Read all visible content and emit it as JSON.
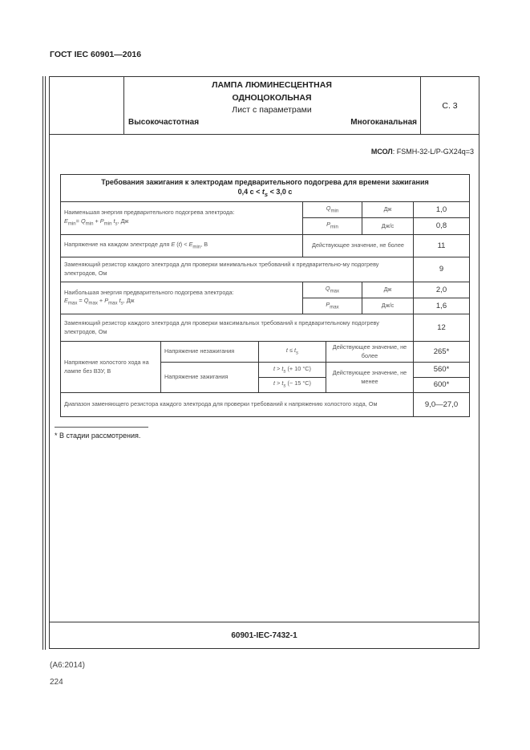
{
  "doc_header": "ГОСТ IEC 60901—2016",
  "sheet": {
    "title_line1": "ЛАМПА ЛЮМИНЕСЦЕНТНАЯ",
    "title_line2": "ОДНОЦОКОЛЬНАЯ",
    "subtitle": "Лист с параметрами",
    "left_label": "Высокочастотная",
    "right_label": "Многоканальная",
    "page": "С. 3",
    "model_label": "МСОЛ",
    "model_value": ": FSMH-32-L/P-GX24q=3",
    "footer_code": "60901-IEC-7432-1"
  },
  "table": {
    "title1": "Требования зажигания к электродам предварительного подогрева для времени зажигания",
    "title2": "0,4 с < ts < 3,0 с",
    "rows": {
      "emin_label1": "Наименьшая энергия предварительного подогрева электрода:",
      "emin_formula": "Emin= Qmin + Pmin ts, Дж",
      "qmin": "Qmin",
      "qmin_unit": "Дж",
      "qmin_value": "1,0",
      "pmin": "Pmin",
      "pmin_unit": "Дж/с",
      "pmin_value": "0,8",
      "voltage_label": "Напряжение на каждом электроде для E (t) < Emin, В",
      "voltage_desc": "Действующее значение, не более",
      "voltage_value": "11",
      "rmin_label": "Заменяющий резистор каждого электрода для проверки минимальных требований к предварительно-му подогреву электродов, Ом",
      "rmin_value": "9",
      "emax_label1": "Наибольшая энергия предварительного подогрева электрода:",
      "emax_formula": "Emax = Qmax + Pmax ts, Дж",
      "qmax": "Qmax",
      "qmax_unit": "Дж",
      "qmax_value": "2,0",
      "pmax": "Pmax",
      "pmax_unit": "Дж/с",
      "pmax_value": "1,6",
      "rmax_label": "Заменяющий резистор каждого электрода для проверки максимальных требований к предварительному подогреву электродов, Ом",
      "rmax_value": "12",
      "ocv_label": "Напряжение холостого хода на лампе без ВЗУ, В",
      "no_ignition": "Напряжение незажигания",
      "no_ignition_cond": "t ≤ ts",
      "no_ignition_desc": "Действующее значение, не более",
      "no_ignition_value": "265*",
      "ignition": "Напряжение зажигания",
      "ignition_cond1": "t > ts (+ 10 °С)",
      "ignition_cond2": "t > ts (− 15 °С)",
      "ignition_desc": "Действующее значение, не менее",
      "ignition_value1": "560*",
      "ignition_value2": "600*",
      "range_label": "Диапазон заменяющего резистора каждого электрода для проверки требований к напряжению холостого хода, Ом",
      "range_value": "9,0—27,0"
    }
  },
  "footnote": "* В стадии рассмотрения.",
  "amendment": "(А6:2014)",
  "page_number": "224"
}
